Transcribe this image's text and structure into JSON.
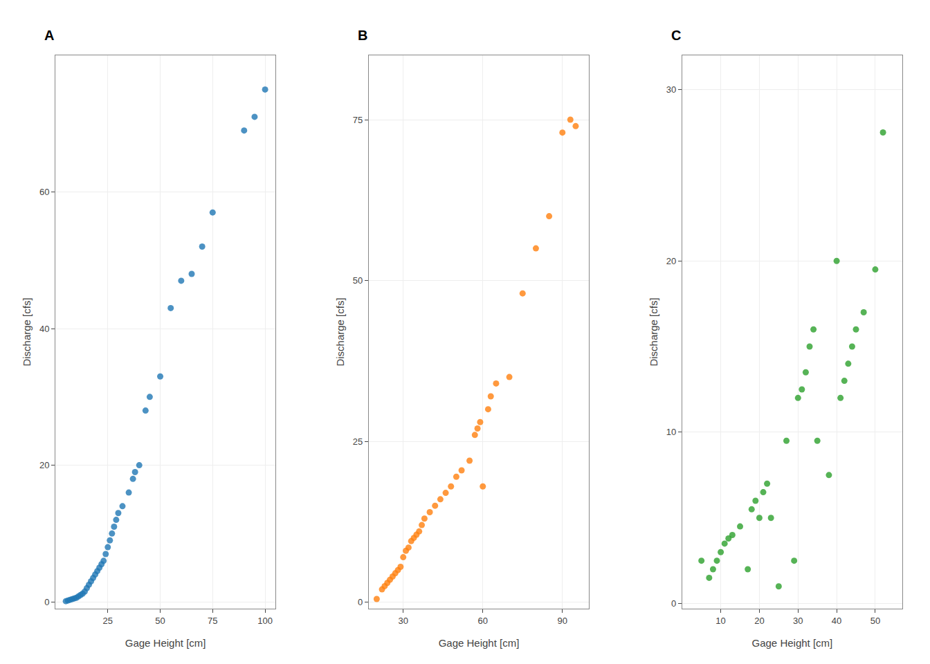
{
  "chart_data": [
    {
      "type": "scatter",
      "title": "A",
      "x": [
        5,
        6,
        7,
        8,
        9,
        10,
        11,
        12,
        13,
        14,
        15,
        16,
        17,
        18,
        19,
        20,
        21,
        22,
        23,
        24,
        25,
        26,
        27,
        28,
        29,
        30,
        32,
        35,
        37,
        38,
        40,
        43,
        45,
        50,
        55,
        60,
        65,
        70,
        75,
        90,
        95,
        100
      ],
      "values": [
        0.1,
        0.2,
        0.3,
        0.4,
        0.5,
        0.6,
        0.8,
        1.0,
        1.2,
        1.5,
        2.0,
        2.5,
        3.0,
        3.5,
        4.0,
        4.5,
        5.0,
        5.5,
        6.0,
        7.0,
        8.0,
        9.0,
        10.0,
        11.0,
        12.0,
        13.0,
        14.0,
        16.0,
        18.0,
        19.0,
        20.0,
        28.0,
        30.0,
        33.0,
        43.0,
        47.0,
        48.0,
        52.0,
        57.0,
        69.0,
        71.0,
        75.0
      ],
      "xlabel": "Gage Height [cm]",
      "ylabel": "Discharge [cfs]",
      "xlim": [
        0,
        105
      ],
      "ylim": [
        -1,
        80
      ],
      "xticks": [
        25,
        50,
        75,
        100
      ],
      "yticks": [
        0,
        20,
        40,
        60
      ],
      "grid": true
    },
    {
      "type": "scatter",
      "title": "B",
      "x": [
        20,
        22,
        23,
        24,
        25,
        26,
        27,
        28,
        29,
        30,
        31,
        32,
        33,
        34,
        35,
        36,
        37,
        38,
        40,
        42,
        44,
        46,
        48,
        50,
        52,
        55,
        57,
        58,
        59,
        60,
        62,
        63,
        65,
        70,
        75,
        80,
        85,
        90,
        93,
        95
      ],
      "values": [
        0.5,
        2.0,
        2.5,
        3.0,
        3.5,
        4.0,
        4.5,
        5.0,
        5.5,
        7.0,
        8.0,
        8.5,
        9.5,
        10.0,
        10.5,
        11.0,
        12.0,
        13.0,
        14.0,
        15.0,
        16.0,
        17.0,
        18.0,
        19.5,
        20.5,
        22.0,
        26.0,
        27.0,
        28.0,
        18.0,
        30.0,
        32.0,
        34.0,
        35.0,
        48.0,
        55.0,
        60.0,
        73.0,
        75.0,
        74.0
      ],
      "xlabel": "Gage Height [cm]",
      "ylabel": "Discharge [cfs]",
      "xlim": [
        17,
        100
      ],
      "ylim": [
        -1,
        85
      ],
      "xticks": [
        30,
        60,
        90
      ],
      "yticks": [
        0,
        25,
        50,
        75
      ],
      "grid": true
    },
    {
      "type": "scatter",
      "title": "C",
      "x": [
        5,
        7,
        8,
        9,
        10,
        11,
        12,
        13,
        15,
        17,
        18,
        19,
        20,
        21,
        22,
        23,
        25,
        27,
        29,
        30,
        31,
        32,
        33,
        34,
        35,
        38,
        40,
        41,
        42,
        43,
        44,
        45,
        47,
        50,
        52
      ],
      "values": [
        2.5,
        1.5,
        2.0,
        2.5,
        3.0,
        3.5,
        3.8,
        4.0,
        4.5,
        2.0,
        5.5,
        6.0,
        5.0,
        6.5,
        7.0,
        5.0,
        1.0,
        9.5,
        2.5,
        12.0,
        12.5,
        13.5,
        15.0,
        16.0,
        9.5,
        7.5,
        20.0,
        12.0,
        13.0,
        14.0,
        15.0,
        16.0,
        17.0,
        19.5,
        27.5
      ],
      "xlabel": "Gage Height [cm]",
      "ylabel": "Discharge [cfs]",
      "xlim": [
        0,
        57
      ],
      "ylim": [
        -0.3,
        32
      ],
      "xticks": [
        10,
        20,
        30,
        40,
        50
      ],
      "yticks": [
        0,
        10,
        20,
        30
      ],
      "grid": true
    }
  ]
}
